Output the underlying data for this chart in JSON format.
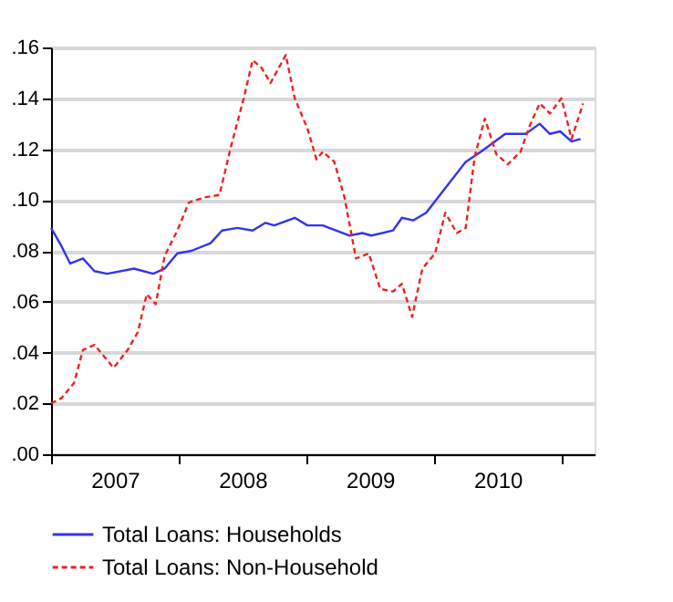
{
  "chart_data": {
    "type": "line",
    "xlim": [
      2007,
      2011.26
    ],
    "ylim": [
      0,
      0.16
    ],
    "xticks": [
      {
        "value": 2007,
        "label": null
      },
      {
        "value": 2007.5,
        "label": "2007"
      },
      {
        "value": 2008,
        "label": null
      },
      {
        "value": 2008.5,
        "label": "2008"
      },
      {
        "value": 2009,
        "label": null
      },
      {
        "value": 2009.5,
        "label": "2009"
      },
      {
        "value": 2010,
        "label": null
      },
      {
        "value": 2010.5,
        "label": "2010"
      },
      {
        "value": 2011,
        "label": null
      }
    ],
    "yticks": [
      {
        "value": 0,
        "label": ".00"
      },
      {
        "value": 0.02,
        "label": ".02"
      },
      {
        "value": 0.04,
        "label": ".04"
      },
      {
        "value": 0.06,
        "label": ".06"
      },
      {
        "value": 0.08,
        "label": ".08"
      },
      {
        "value": 0.1,
        "label": ".10"
      },
      {
        "value": 0.12,
        "label": ".12"
      },
      {
        "value": 0.14,
        "label": ".14"
      },
      {
        "value": 0.16,
        "label": ".16"
      }
    ],
    "grid": "y",
    "legend": "bottom",
    "series": [
      {
        "name": "Total Loans: Households",
        "color": "#3333ee",
        "line_style": "solid",
        "x": [
          2007.0,
          2007.08,
          2007.15,
          2007.25,
          2007.34,
          2007.44,
          2007.65,
          2007.8,
          2007.89,
          2007.99,
          2008.1,
          2008.25,
          2008.34,
          2008.46,
          2008.58,
          2008.68,
          2008.75,
          2008.91,
          2009.01,
          2009.13,
          2009.18,
          2009.34,
          2009.44,
          2009.51,
          2009.68,
          2009.75,
          2009.84,
          2009.94,
          2010.08,
          2010.25,
          2010.37,
          2010.56,
          2010.72,
          2010.83,
          2010.91,
          2010.99,
          2011.08,
          2011.15
        ],
        "values": [
          0.089,
          0.082,
          0.075,
          0.077,
          0.072,
          0.071,
          0.073,
          0.071,
          0.073,
          0.079,
          0.08,
          0.083,
          0.088,
          0.089,
          0.088,
          0.091,
          0.09,
          0.093,
          0.09,
          0.09,
          0.089,
          0.086,
          0.087,
          0.086,
          0.088,
          0.093,
          0.092,
          0.095,
          0.104,
          0.115,
          0.119,
          0.126,
          0.126,
          0.13,
          0.126,
          0.127,
          0.123,
          0.124
        ]
      },
      {
        "name": "Total Loans: Non-Household",
        "color": "#ee2222",
        "line_style": "dashed",
        "x": [
          2007.0,
          2007.08,
          2007.18,
          2007.25,
          2007.34,
          2007.49,
          2007.6,
          2007.68,
          2007.75,
          2007.82,
          2007.89,
          2007.99,
          2008.08,
          2008.2,
          2008.32,
          2008.41,
          2008.51,
          2008.58,
          2008.65,
          2008.72,
          2008.84,
          2008.91,
          2009.01,
          2009.08,
          2009.13,
          2009.22,
          2009.3,
          2009.39,
          2009.49,
          2009.58,
          2009.68,
          2009.75,
          2009.83,
          2009.91,
          2010.01,
          2010.09,
          2010.18,
          2010.25,
          2010.32,
          2010.4,
          2010.49,
          2010.58,
          2010.68,
          2010.75,
          2010.83,
          2010.91,
          2011.0,
          2011.08,
          2011.17
        ],
        "values": [
          0.02,
          0.022,
          0.028,
          0.041,
          0.043,
          0.034,
          0.041,
          0.048,
          0.063,
          0.059,
          0.078,
          0.088,
          0.099,
          0.101,
          0.102,
          0.121,
          0.14,
          0.155,
          0.152,
          0.146,
          0.157,
          0.14,
          0.128,
          0.116,
          0.119,
          0.115,
          0.101,
          0.077,
          0.079,
          0.065,
          0.064,
          0.067,
          0.054,
          0.073,
          0.079,
          0.095,
          0.087,
          0.089,
          0.117,
          0.132,
          0.118,
          0.114,
          0.119,
          0.129,
          0.138,
          0.134,
          0.14,
          0.124,
          0.138
        ]
      }
    ]
  }
}
